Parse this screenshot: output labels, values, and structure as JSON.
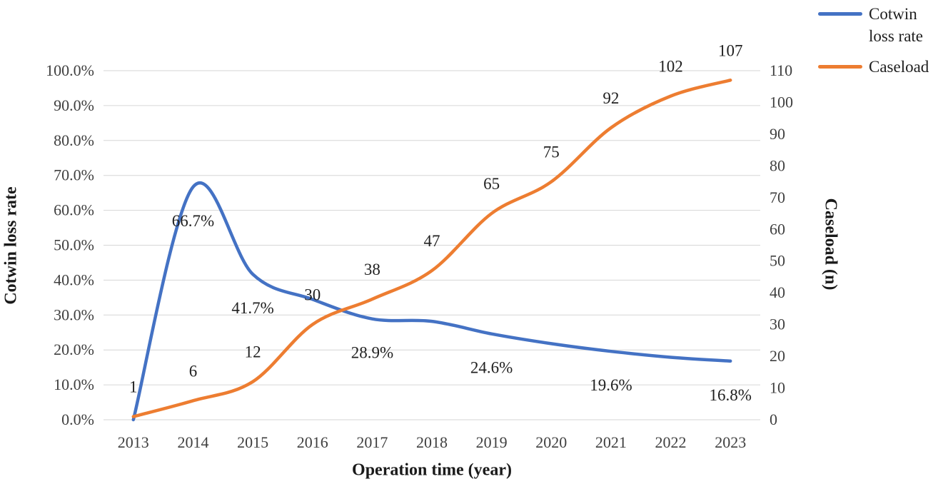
{
  "chart_data": {
    "type": "line",
    "title": "",
    "grid": "horizontal",
    "legend_position": "top-right",
    "categories": [
      "2013",
      "2014",
      "2015",
      "2016",
      "2017",
      "2018",
      "2019",
      "2020",
      "2021",
      "2022",
      "2023"
    ],
    "x_axis": {
      "title": "Operation time (year)"
    },
    "left_axis": {
      "title": "Cotwin loss rate",
      "min": 0,
      "max": 100,
      "step": 10,
      "format": "percent",
      "ticks": [
        "0.0%",
        "10.0%",
        "20.0%",
        "30.0%",
        "40.0%",
        "50.0%",
        "60.0%",
        "70.0%",
        "80.0%",
        "90.0%",
        "100.0%"
      ]
    },
    "right_axis": {
      "title": "Caseload (n)",
      "min": 0,
      "max": 110,
      "step": 10,
      "ticks": [
        "0",
        "10",
        "20",
        "30",
        "40",
        "50",
        "60",
        "70",
        "80",
        "90",
        "100",
        "110"
      ]
    },
    "series": [
      {
        "name": "Cotwin loss rate",
        "axis": "left",
        "color": "#4472C4",
        "values": [
          0,
          66.7,
          41.7,
          34.5,
          28.9,
          28.2,
          24.6,
          21.8,
          19.6,
          17.9,
          16.8
        ],
        "point_labels": [
          "",
          "66.7%",
          "41.7%",
          "",
          "28.9%",
          "",
          "24.6%",
          "",
          "19.6%",
          "",
          "16.8%"
        ],
        "label_side": "below"
      },
      {
        "name": "Caseload",
        "axis": "right",
        "color": "#ED7D31",
        "values": [
          1,
          6,
          12,
          30,
          38,
          47,
          65,
          75,
          92,
          102,
          107
        ],
        "point_labels": [
          "1",
          "6",
          "12",
          "30",
          "38",
          "47",
          "65",
          "75",
          "92",
          "102",
          "107"
        ],
        "label_side": "above"
      }
    ],
    "legend": [
      {
        "label": "Cotwin loss rate",
        "color": "#4472C4"
      },
      {
        "label": "Caseload",
        "color": "#ED7D31"
      }
    ],
    "gridline_color": "#D6D6D6"
  }
}
